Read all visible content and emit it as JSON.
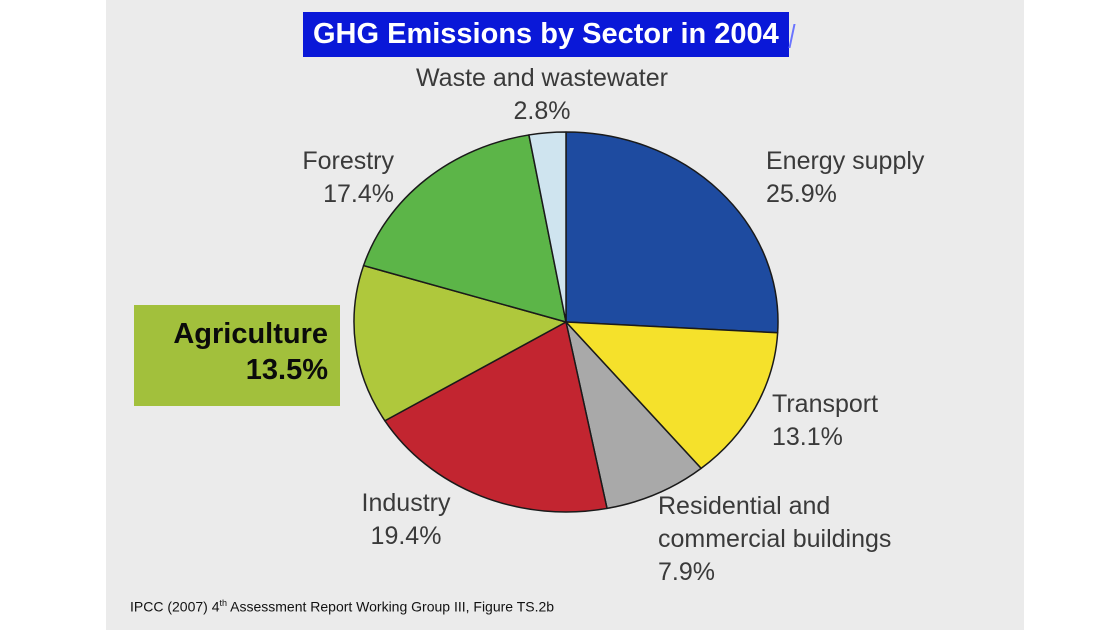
{
  "chart_data": {
    "type": "pie",
    "title": "GHG Emissions by Sector in 2004",
    "slices": [
      {
        "key": "energy",
        "label": "Energy supply",
        "value": 25.9,
        "value_label": "25.9%",
        "color": "#1e4ba0"
      },
      {
        "key": "transport",
        "label": "Transport",
        "value": 13.1,
        "value_label": "13.1%",
        "color": "#f5e12b"
      },
      {
        "key": "residential",
        "label_line1": "Residential and",
        "label_line2": "commercial buildings",
        "value": 7.9,
        "value_label": "7.9%",
        "color": "#a9a9a9"
      },
      {
        "key": "industry",
        "label": "Industry",
        "value": 19.4,
        "value_label": "19.4%",
        "color": "#c22530"
      },
      {
        "key": "agriculture",
        "label": "Agriculture",
        "value": 13.5,
        "value_label": "13.5%",
        "color": "#afc83c"
      },
      {
        "key": "forestry",
        "label": "Forestry",
        "value": 17.4,
        "value_label": "17.4%",
        "color": "#5cb548"
      },
      {
        "key": "waste",
        "label": "Waste and wastewater",
        "value": 2.8,
        "value_label": "2.8%",
        "color": "#cfe4ef"
      }
    ],
    "start_direction": "12 o'clock",
    "order": "clockwise",
    "highlighted_slice": "agriculture",
    "highlight_color": "#a2c03c",
    "title_background": "#0a18d8"
  },
  "source": {
    "prefix": "IPCC (2007) 4",
    "superscript": "th",
    "suffix": " Assessment Report Working Group III, Figure TS.2b"
  }
}
